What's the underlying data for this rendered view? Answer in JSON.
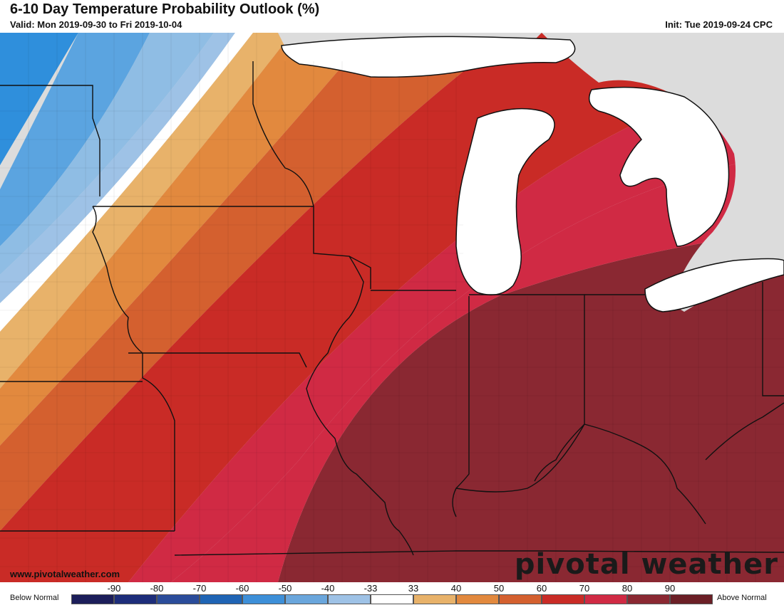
{
  "header": {
    "title": "6-10 Day Temperature Probability Outlook (%)",
    "valid": "Valid: Mon 2019-09-30 to Fri 2019-10-04",
    "init": "Init: Tue 2019-09-24 CPC"
  },
  "footer": {
    "credit": "www.pivotalweather.com",
    "logo": "pivotal weather"
  },
  "legend": {
    "below_label": "Below Normal",
    "above_label": "Above Normal",
    "ticks": [
      "-90",
      "-80",
      "-70",
      "-60",
      "-50",
      "-40",
      "-33",
      "33",
      "40",
      "50",
      "60",
      "70",
      "80",
      "90"
    ],
    "colors": [
      "#1c1e5a",
      "#1d2d7a",
      "#2a4c9a",
      "#1f64b4",
      "#3d8fd8",
      "#6aa6dc",
      "#9ec2e6",
      "#ffffff",
      "#e8b26a",
      "#e2893e",
      "#d4602f",
      "#c92b26",
      "#d02a44",
      "#8a2832",
      "#6b1f26"
    ]
  },
  "map": {
    "region": "Upper Midwest / Great Lakes",
    "land_color": "#dcdcdc",
    "water_color": "#ffffff",
    "max_category": "90",
    "min_category": "-60"
  }
}
